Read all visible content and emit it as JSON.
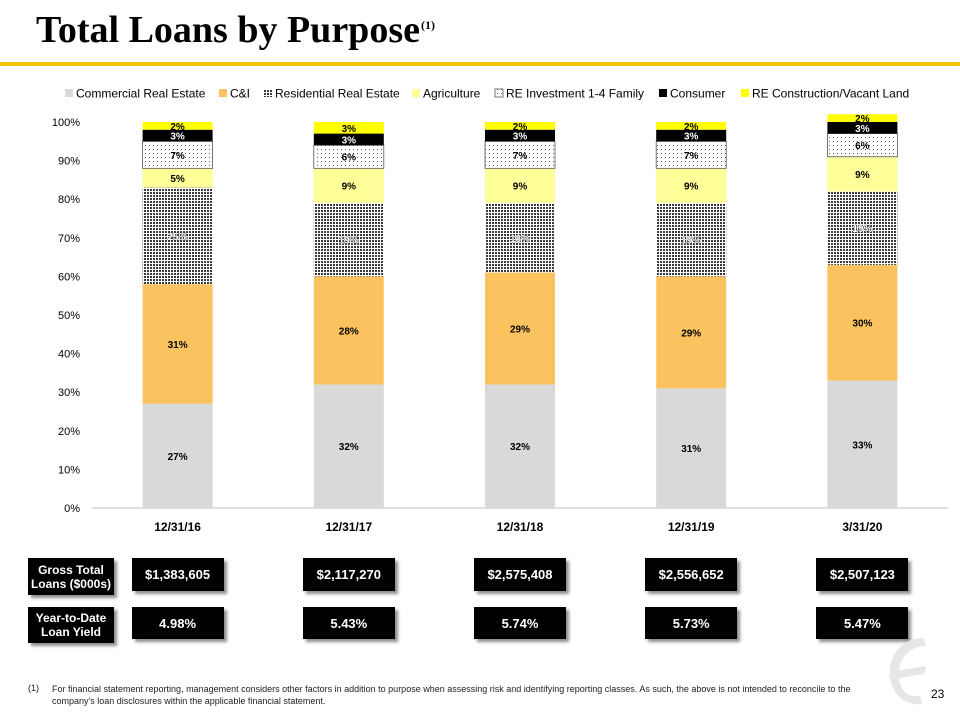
{
  "page": {
    "title": "Total Loans by Purpose",
    "title_sup": "(1)",
    "page_number": "23",
    "footnote_num": "(1)",
    "footnote": "For financial statement reporting, management considers other factors in addition to purpose when assessing risk and identifying reporting classes. As such, the above is not intended to reconcile to the company's loan disclosures within the applicable financial statement.",
    "accent_color": "#F2C200"
  },
  "chart_data": {
    "type": "bar",
    "stacked": true,
    "categories": [
      "12/31/16",
      "12/31/17",
      "12/31/18",
      "12/31/19",
      "3/31/20"
    ],
    "ylim": [
      0,
      100
    ],
    "yticks": [
      "0%",
      "10%",
      "20%",
      "30%",
      "40%",
      "50%",
      "60%",
      "70%",
      "80%",
      "90%",
      "100%"
    ],
    "legend_position": "top",
    "series": [
      {
        "name": "Commercial Real Estate",
        "color": "#D9D9D9",
        "pattern": "solid",
        "values": [
          27,
          32,
          32,
          31,
          33
        ],
        "labels": [
          "27%",
          "32%",
          "32%",
          "31%",
          "33%"
        ]
      },
      {
        "name": "C&I",
        "color": "#FAC35F",
        "pattern": "solid",
        "values": [
          31,
          28,
          29,
          29,
          30
        ],
        "labels": [
          "31%",
          "28%",
          "29%",
          "29%",
          "30%"
        ]
      },
      {
        "name": "Residential Real Estate",
        "color": "#777777",
        "pattern": "dense-dots",
        "values": [
          25,
          19,
          18,
          19,
          19
        ],
        "labels": [
          "25%",
          "19%",
          "18%",
          "19%",
          "19%"
        ]
      },
      {
        "name": "Agriculture",
        "color": "#FFFF99",
        "pattern": "solid",
        "values": [
          5,
          9,
          9,
          9,
          9
        ],
        "labels": [
          "5%",
          "9%",
          "9%",
          "9%",
          "9%"
        ]
      },
      {
        "name": "RE Investment 1-4 Family",
        "color": "#FFFFFF",
        "pattern": "sparse-dots",
        "values": [
          7,
          6,
          7,
          7,
          6
        ],
        "labels": [
          "7%",
          "6%",
          "7%",
          "7%",
          "6%"
        ]
      },
      {
        "name": "Consumer",
        "color": "#000000",
        "pattern": "solid",
        "values": [
          3,
          3,
          3,
          3,
          3
        ],
        "labels": [
          "3%",
          "3%",
          "3%",
          "3%",
          "3%"
        ]
      },
      {
        "name": "RE Construction/Vacant Land",
        "color": "#FFFF00",
        "pattern": "solid",
        "values": [
          2,
          3,
          2,
          2,
          2
        ],
        "labels": [
          "2%",
          "3%",
          "2%",
          "2%",
          "2%"
        ]
      }
    ]
  },
  "table": {
    "rows": [
      {
        "label": "Gross Total Loans ($000s)",
        "values": [
          "$1,383,605",
          "$2,117,270",
          "$2,575,408",
          "$2,556,652",
          "$2,507,123"
        ]
      },
      {
        "label": "Year-to-Date Loan Yield",
        "values": [
          "4.98%",
          "5.43%",
          "5.74%",
          "5.73%",
          "5.47%"
        ]
      }
    ]
  }
}
